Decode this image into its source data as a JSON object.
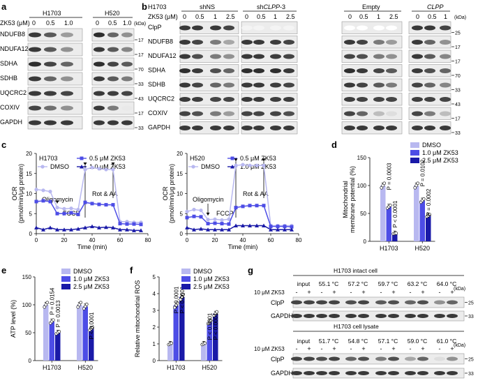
{
  "colors": {
    "dmso": "#b8b8f0",
    "mid": "#4d4de6",
    "high": "#1a1aa8",
    "blot_bg": "#e8e8e8"
  },
  "panels": {
    "a": {
      "letter": "a",
      "treatment_label": "ZK53 (μM)",
      "kda_label": "(kDa)",
      "cell_lines": [
        "H1703",
        "H520"
      ],
      "doses": [
        "0",
        "0.5",
        "1.0",
        "0",
        "0.5",
        "1.0"
      ],
      "proteins": [
        "NDUFB8",
        "NDUFA12",
        "SDHA",
        "SDHB",
        "UQCRC2",
        "COXIV",
        "GAPDH"
      ],
      "markers": [
        "17",
        "17",
        "70",
        "33",
        "43",
        "17",
        "33"
      ]
    },
    "b": {
      "letter": "b",
      "cell_line": "H1703",
      "treatment_label": "ZK53 (μM)",
      "kda_label": "(kDa)",
      "groups": [
        {
          "label": "shNS",
          "italic": false
        },
        {
          "label": "shCLPP-3",
          "prefix": "sh",
          "italic_part": "CLPP",
          "suffix": "-3"
        },
        {
          "label": "Empty",
          "italic": false
        },
        {
          "label": "CLPP",
          "italic": true
        }
      ],
      "doses_shNS": [
        "0",
        "0.5",
        "1",
        "2.5"
      ],
      "doses_shCLPP": [
        "0",
        "0.5",
        "1",
        "2.5"
      ],
      "doses_empty": [
        "0",
        "0.5",
        "1",
        "2.5"
      ],
      "doses_clpp": [
        "0",
        "0.5",
        "1"
      ],
      "proteins": [
        "ClpP",
        "NDUFB8",
        "NDUFA12",
        "SDHA",
        "SDHB",
        "UQCRC2",
        "COXIV",
        "GAPDH"
      ],
      "markers": [
        "25",
        "17",
        "17",
        "70",
        "33",
        "43",
        "17",
        "33"
      ]
    },
    "c": {
      "letter": "c",
      "ylabel_1": "OCR",
      "ylabel_2": "(pmol/min/μg protein)",
      "xlabel": "Time (min)",
      "legend": [
        "DMSO",
        "0.5 μM ZK53",
        "1.0 μM ZK53"
      ],
      "annotations": [
        "Oligomycin",
        "FCCP",
        "Rot & AA"
      ],
      "charts": [
        {
          "cell_line": "H1703"
        },
        {
          "cell_line": "H520"
        }
      ]
    },
    "d": {
      "letter": "d",
      "ylabel_1": "Mitochondrial",
      "ylabel_2": "membrane potential (%)",
      "legend": [
        "DMSO",
        "1.0 μM ZK53",
        "2.5 μM ZK53"
      ],
      "pvalues": [
        "P = 0.0003",
        "P < 0.0001",
        "P = 0.0102",
        "P = 0.0002"
      ]
    },
    "e": {
      "letter": "e",
      "ylabel": "ATP level (%)",
      "legend": [
        "DMSO",
        "1.0 μM ZK53",
        "2.5 μM ZK53"
      ],
      "pvalues": [
        "P = 0.0154",
        "P = 0.0013",
        "P < 0.0001"
      ]
    },
    "f": {
      "letter": "f",
      "ylabel": "Relative mitochondrial ROS",
      "legend": [
        "DMSO",
        "1.0 μM ZK53",
        "2.5 μM ZK53"
      ],
      "pvalues": [
        "P < 0.0001",
        "P < 0.0001",
        "P < 0.0001",
        "P < 0.0001"
      ]
    },
    "g": {
      "letter": "g",
      "top_title": "H1703 intact cell",
      "bottom_title": "H1703 cell lysate",
      "treatment_label": "10 μM ZK53",
      "kda_label": "(kDa)",
      "top_columns": [
        "input",
        "55.1 °C",
        "57.2 °C",
        "59.7 °C",
        "63.2 °C",
        "64.0 °C"
      ],
      "bottom_columns": [
        "input",
        "51.7 °C",
        "54.8 °C",
        "57.1 °C",
        "59.0 °C",
        "61.0 °C"
      ],
      "signs": [
        "-",
        "+"
      ],
      "proteins": [
        "ClpP",
        "GAPDH"
      ],
      "markers": [
        "25",
        "33"
      ]
    }
  },
  "chart_data": [
    {
      "type": "line",
      "title": "H1703",
      "xlabel": "Time (min)",
      "ylabel": "OCR (pmol/min/μg protein)",
      "xlim": [
        0,
        80
      ],
      "ylim": [
        0,
        20
      ],
      "x": [
        0,
        5,
        10,
        15,
        20,
        25,
        30,
        35,
        40,
        45,
        50,
        55,
        60,
        65,
        70,
        75
      ],
      "series": [
        {
          "name": "DMSO",
          "values": [
            11,
            10.8,
            10.5,
            6.5,
            6.2,
            6.3,
            6,
            16,
            16.5,
            16.2,
            16,
            16,
            3,
            3,
            2.8,
            2.8
          ]
        },
        {
          "name": "0.5 μM ZK53",
          "values": [
            8,
            8.2,
            8,
            5,
            5,
            5.2,
            4.8,
            7.8,
            7.5,
            7.3,
            7.2,
            7.2,
            2.5,
            2.4,
            2.4,
            2.3
          ]
        },
        {
          "name": "1.0 μM ZK53",
          "values": [
            1.5,
            1,
            1.5,
            1,
            1,
            1,
            1.2,
            1.5,
            1.8,
            1.5,
            1.6,
            1.5,
            1,
            1,
            0.8,
            0.8
          ]
        }
      ]
    },
    {
      "type": "line",
      "title": "H520",
      "xlabel": "Time (min)",
      "ylabel": "OCR (pmol/min/μg protein)",
      "xlim": [
        0,
        80
      ],
      "ylim": [
        0,
        20
      ],
      "x": [
        0,
        5,
        10,
        15,
        20,
        25,
        30,
        35,
        40,
        45,
        50,
        55,
        60,
        65,
        70,
        75
      ],
      "series": [
        {
          "name": "DMSO",
          "values": [
            5.5,
            6,
            5.8,
            3.5,
            3.6,
            3.4,
            3.6,
            17,
            17.2,
            17,
            17,
            17,
            2,
            2,
            2,
            2
          ]
        },
        {
          "name": "0.5 μM ZK53",
          "values": [
            4,
            4.3,
            4.2,
            2.5,
            2.6,
            2.5,
            2.4,
            6.5,
            6.8,
            7,
            7,
            7,
            1.8,
            1.8,
            1.8,
            1.7
          ]
        },
        {
          "name": "1.0 μM ZK53",
          "values": [
            1.5,
            1,
            1.2,
            1,
            1,
            1,
            1,
            2,
            2,
            2,
            2,
            2,
            1,
            1,
            1,
            1
          ]
        }
      ]
    },
    {
      "type": "bar",
      "ylabel": "Mitochondrial membrane potential (%)",
      "ylim": [
        0,
        150
      ],
      "categories": [
        "H1703",
        "H520"
      ],
      "series": [
        {
          "name": "DMSO",
          "values": [
            100,
            100
          ]
        },
        {
          "name": "1.0 μM ZK53",
          "values": [
            62,
            73
          ]
        },
        {
          "name": "2.5 μM ZK53",
          "values": [
            14,
            46
          ]
        }
      ]
    },
    {
      "type": "bar",
      "ylabel": "ATP level (%)",
      "ylim": [
        0,
        150
      ],
      "categories": [
        "H1703",
        "H520"
      ],
      "series": [
        {
          "name": "DMSO",
          "values": [
            100,
            100
          ]
        },
        {
          "name": "1.0 μM ZK53",
          "values": [
            70,
            97
          ]
        },
        {
          "name": "2.5 μM ZK53",
          "values": [
            50,
            57
          ]
        }
      ]
    },
    {
      "type": "bar",
      "ylabel": "Relative mitochondrial ROS",
      "ylim": [
        0,
        5
      ],
      "categories": [
        "H1703",
        "H520"
      ],
      "series": [
        {
          "name": "DMSO",
          "values": [
            1,
            1
          ]
        },
        {
          "name": "1.0 μM ZK53",
          "values": [
            3.3,
            2.3
          ]
        },
        {
          "name": "2.5 μM ZK53",
          "values": [
            3.8,
            2.8
          ]
        }
      ]
    }
  ]
}
